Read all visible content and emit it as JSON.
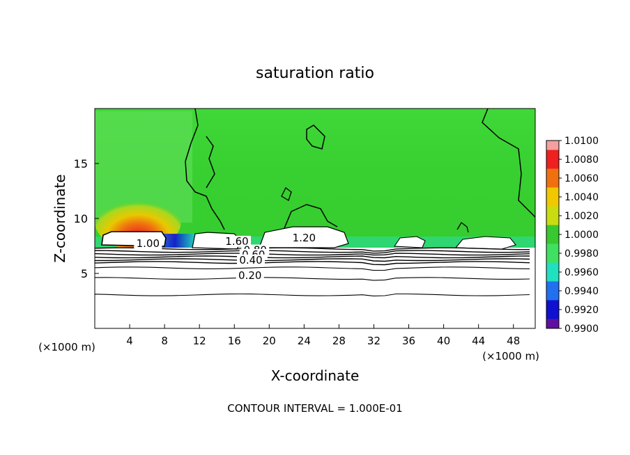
{
  "chart_data": {
    "type": "heatmap",
    "title": "saturation ratio",
    "xlabel": "X-coordinate",
    "ylabel": "Z-coordinate",
    "x_unit_label": "(×1000 m)",
    "y_unit_label": "(×1000 m)",
    "xlim": [
      0,
      50.5
    ],
    "ylim": [
      0,
      20
    ],
    "xticks": [
      4,
      8,
      12,
      16,
      20,
      24,
      28,
      32,
      36,
      40,
      44,
      48
    ],
    "yticks": [
      5,
      10,
      15
    ],
    "footer": "CONTOUR INTERVAL = 1.000E-01",
    "colorbar": {
      "levels": [
        "1.0100",
        "1.0080",
        "1.0060",
        "1.0040",
        "1.0020",
        "1.0000",
        "0.9980",
        "0.9960",
        "0.9940",
        "0.9920",
        "0.9900"
      ],
      "colors": [
        "#f4a0a0",
        "#ee2020",
        "#f07010",
        "#f0c800",
        "#c8dc10",
        "#38c830",
        "#40e060",
        "#20e0c0",
        "#2070f0",
        "#1010d0",
        "#6010a0"
      ]
    },
    "contour_labels": [
      {
        "text": "1.00",
        "x": 6.1,
        "z": 7.4
      },
      {
        "text": "1.60",
        "x": 16.3,
        "z": 7.6
      },
      {
        "text": "1.20",
        "x": 24.0,
        "z": 7.9
      },
      {
        "text": "0.80",
        "x": 18.4,
        "z": 6.8
      },
      {
        "text": "0.60",
        "x": 18.2,
        "z": 6.4
      },
      {
        "text": "0.40",
        "x": 17.9,
        "z": 5.9
      },
      {
        "text": "0.20",
        "x": 17.8,
        "z": 4.5
      }
    ],
    "contour_levels_z": [
      7.25,
      7.0,
      6.75,
      6.5,
      6.25,
      6.0,
      5.5,
      4.55,
      3.05
    ]
  }
}
